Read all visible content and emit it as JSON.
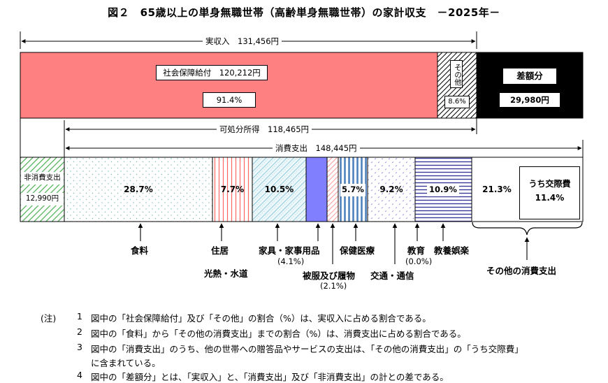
{
  "title": "図２　65歳以上の単身無職世帯（高齢単身無職世帯）の家計収支　－2025年－",
  "income": {
    "total_label": "実収入　131,456円",
    "social_security": {
      "label": "社会保障給付　120,212円",
      "percent": "91.4%"
    },
    "other": {
      "label": "その他",
      "percent": "8.6%"
    },
    "deficit": {
      "label": "差額分",
      "value": "29,980円"
    },
    "disposable_label": "可処分所得　118,465円"
  },
  "expenditure": {
    "consumption_label": "消費支出　148,445円",
    "non_consumption": {
      "label": "非消費支出",
      "value": "12,990円"
    },
    "segments": [
      {
        "key": "food",
        "percent": "28.7%",
        "category": "食料"
      },
      {
        "key": "housing",
        "percent": "7.7%",
        "category": "住居"
      },
      {
        "key": "utilities",
        "percent": "10.5%",
        "category": "光熱・水道"
      },
      {
        "key": "furniture",
        "percent": "",
        "category": "家具・家事用品",
        "sub": "(4.1%)"
      },
      {
        "key": "clothing",
        "percent": "",
        "category": "被服及び履物",
        "sub": "(2.1%)"
      },
      {
        "key": "medical",
        "percent": "5.7%",
        "category": "保健医療"
      },
      {
        "key": "transport",
        "percent": "9.2%",
        "category": "交通・通信"
      },
      {
        "key": "education",
        "percent": "",
        "category": "教育",
        "sub": "(0.0%)"
      },
      {
        "key": "recreation",
        "percent": "10.9%",
        "category": "教養娯楽"
      },
      {
        "key": "other_consumption",
        "percent": "21.3%",
        "category": "その他の消費支出"
      }
    ],
    "social_expenses": {
      "label": "うち交際費",
      "percent": "11.4%"
    }
  },
  "notes": {
    "marker": "(注)",
    "items": [
      {
        "num": "1",
        "text": "図中の「社会保障給付」及び「その他」の割合（%）は、実収入に占める割合である。"
      },
      {
        "num": "2",
        "text": "図中の「食料」から「その他の消費支出」までの割合（%）は、消費支出に占める割合である。"
      },
      {
        "num": "3",
        "text": "図中の「消費支出」のうち、他の世帯への贈答品やサービスの支出は、「その他の消費支出」の「うち交際費」"
      },
      {
        "num": "",
        "text": "に含まれている。"
      },
      {
        "num": "4",
        "text": "図中の「差額分」とは、「実収入」と、「消費支出」及び「非消費支出」の計との差である。"
      }
    ]
  },
  "colors": {
    "social_security": "#ff8080",
    "deficit": "#000000",
    "furniture": "#8080ff",
    "medical_stripe": "#4f81bd",
    "housing_stripe": "#ff6666",
    "recreation_stripe": "#3b3b9b",
    "non_consumption_hatch": "#4caf50"
  }
}
